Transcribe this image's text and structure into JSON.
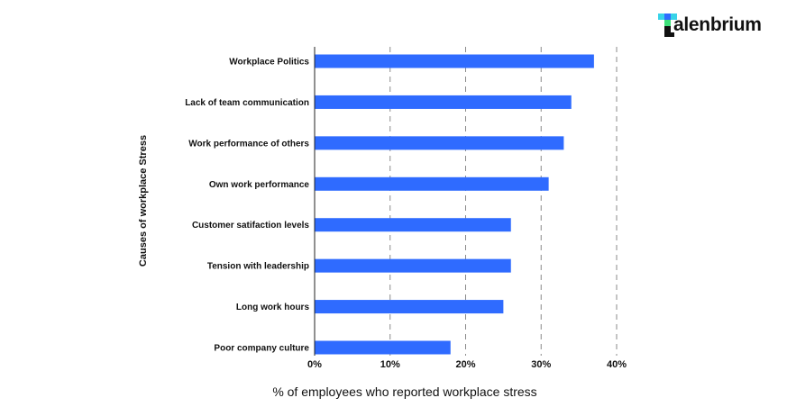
{
  "brand": {
    "text": "alenbrium",
    "colors": {
      "cyan": "#38d3e8",
      "blue": "#2f6bff",
      "green": "#3ee07a",
      "dark": "#111111"
    }
  },
  "chart_data": {
    "type": "bar",
    "orientation": "horizontal",
    "categories": [
      "Workplace Politics",
      "Lack of team communication",
      "Work performance of others",
      "Own work performance",
      "Customer satifaction levels",
      "Tension with leadership",
      "Long work hours",
      "Poor company culture"
    ],
    "values": [
      37,
      34,
      33,
      31,
      26,
      26,
      25,
      18
    ],
    "xlabel": "% of employees who reported workplace stress",
    "ylabel": "Causes of workplace Stress",
    "xlim": [
      0,
      40
    ],
    "xticks": [
      0,
      10,
      20,
      30,
      40
    ],
    "xtick_labels": [
      "0%",
      "10%",
      "20%",
      "30%",
      "40%"
    ],
    "grid": "vertical dashed",
    "bar_color": "#2f6bff"
  }
}
